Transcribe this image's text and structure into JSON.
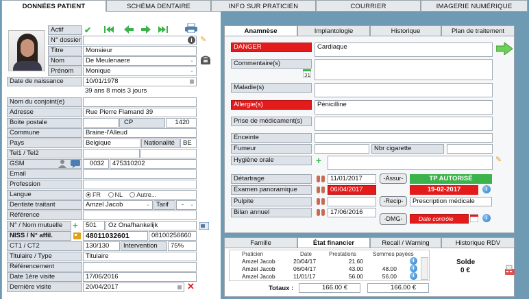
{
  "top_tabs": [
    "DONNÉES PATIENT",
    "SCHÉMA DENTAIRE",
    "INFO SUR PRATICIEN",
    "COURRIER",
    "IMAGERIE NUMÉRIQUE"
  ],
  "patient": {
    "actif_label": "Actif",
    "dossier_label": "N° dossier",
    "titre_label": "Titre",
    "titre_value": "Monsieur",
    "nom_label": "Nom",
    "nom_value": "De Meulenaere",
    "prenom_label": "Prénom",
    "prenom_value": "Monique",
    "naissance_label": "Date de naissance",
    "naissance_value": "10/01/1978",
    "age_value": "39 ans 8 mois 3 jours",
    "conjoint_label": "Nom du conjoint(e)",
    "adresse_label": "Adresse",
    "adresse_value": "Rue Pierre Flamand 39",
    "boite_label": "Boite postale",
    "cp_label": "CP",
    "cp_value": "1420",
    "commune_label": "Commune",
    "commune_value": "Braine-l'Alleud",
    "pays_label": "Pays",
    "pays_value": "Belgique",
    "nationalite_label": "Nationalité",
    "nationalite_value": "BE",
    "tel_label": "Tel1 / Tel2",
    "gsm_label": "GSM",
    "gsm_prefix": "0032",
    "gsm_value": "475310202",
    "email_label": "Email",
    "profession_label": "Profession",
    "langue_label": "Langue",
    "langue_options": [
      "FR",
      "NL",
      "Autre..."
    ],
    "dentiste_label": "Dentiste traitant",
    "dentiste_value": "Amzel Jacob",
    "tarif_label": "Tarif",
    "tarif_value": "-",
    "reference_label": "Référence",
    "mutuelle_label": "N° / Nom mutuelle",
    "mutuelle_num": "501",
    "mutuelle_nom": "Oz Onafhankelijk",
    "niss_label": "NISS / N° affil.",
    "niss_value": "48011032601",
    "affil_value": "08100256660",
    "ct_label": "CT1 / CT2",
    "ct_value": "130/130",
    "intervention_label": "Intervention",
    "intervention_value": "75%",
    "titulaire_label": "Titulaire / Type",
    "titulaire_value": "Titulaire",
    "referencement_label": "Référencement",
    "premiere_label": "Date 1ère visite",
    "premiere_value": "17/06/2016",
    "derniere_label": "Dernière visite",
    "derniere_value": "20/04/2017"
  },
  "right_tabs": [
    "Anamnèse",
    "Implantologie",
    "Historique",
    "Plan de traitement"
  ],
  "anamnese": {
    "danger_label": "DANGER",
    "danger_value": "Cardiaque",
    "commentaire_label": "Commentaire(s)",
    "maladie_label": "Maladie(s)",
    "allergie_label": "Allergie(s)",
    "allergie_value": "Pénicilline",
    "medicament_label": "Prise de médicament(s)",
    "enceinte_label": "Enceinte",
    "fumeur_label": "Fumeur",
    "cigarette_label": "Nbr cigarette",
    "hygiene_label": "Hygiène orale",
    "detartrage_label": "Détartrage",
    "detartrage_date": "11/01/2017",
    "assur_label": "Assur",
    "tp_label": "TP AUTORISÉ",
    "panoramique_label": "Examen panoramique",
    "panoramique_date": "06/04/2017",
    "tp_date": "19-02-2017",
    "pulpite_label": "Pulpite",
    "recip_label": "Recip",
    "prescription_label": "Prescription médicale",
    "bilan_label": "Bilan annuel",
    "bilan_date": "17/06/2016",
    "dmg_label": "DMG",
    "controle_label": "Date contrôle"
  },
  "bottom_tabs": [
    "Famille",
    "État financier",
    "Recall / Warning",
    "Historique RDV"
  ],
  "financier": {
    "headers": [
      "Praticien",
      "Date",
      "Prestations",
      "Sommes payées"
    ],
    "rows": [
      {
        "praticien": "Amzel Jacob",
        "date": "20/04/17",
        "prestations": "21.60",
        "payees": ""
      },
      {
        "praticien": "Amzel Jacob",
        "date": "06/04/17",
        "prestations": "43.00",
        "payees": "48.00"
      },
      {
        "praticien": "Amzel Jacob",
        "date": "11/01/17",
        "prestations": "56.00",
        "payees": "56.00"
      }
    ],
    "totaux_label": "Totaux :",
    "total_prestations": "166.00 €",
    "total_payees": "166.00 €",
    "solde_label": "Solde",
    "solde_value": "0 €"
  }
}
